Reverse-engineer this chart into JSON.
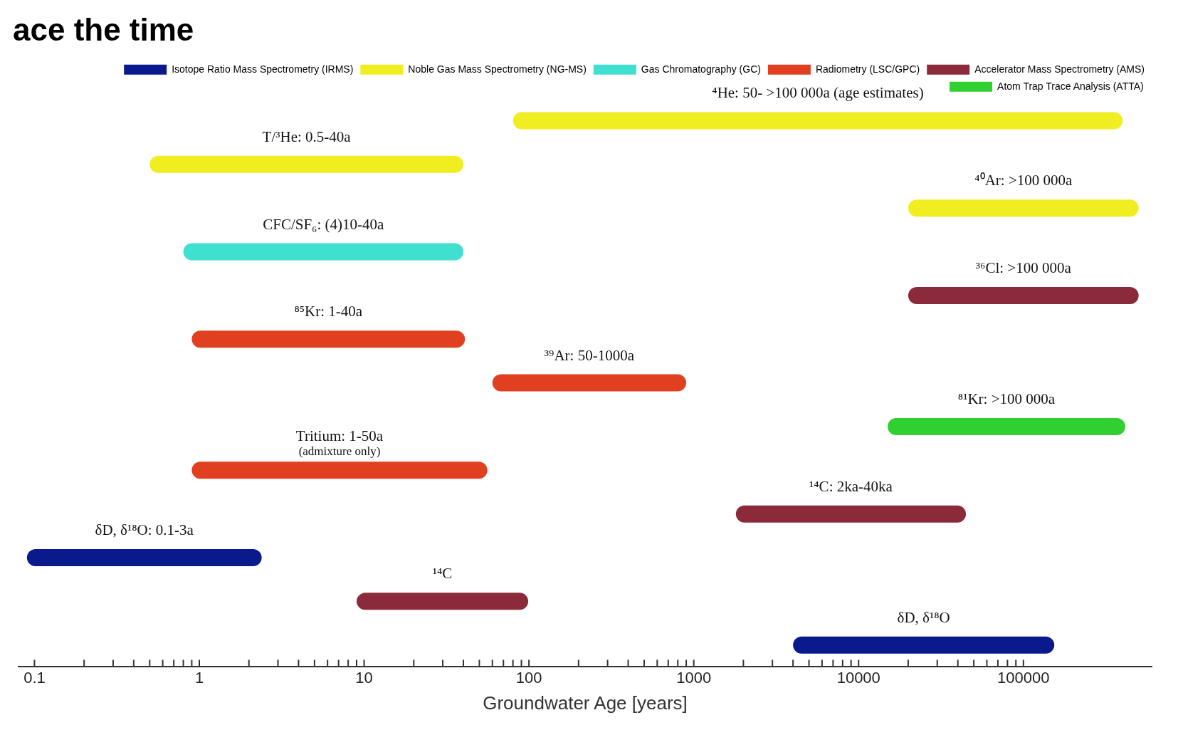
{
  "chart_data": {
    "type": "bar",
    "orientation": "horizontal",
    "log": "x",
    "title": "ace the time",
    "xlabel": "Groundwater Age [years]",
    "categories": [
      "⁴He: 50- >100 000a (age estimates)",
      "T/³He: 0.5-40a",
      "⁴⁰Ar: >100 000a",
      "CFC/SF₆: (4)10-40a",
      "³⁶Cl: >100 000a",
      "⁸⁵Kr: 1-40a",
      "³⁹Ar: 50-1000a",
      "⁸¹Kr: >100 000a",
      "Tritium: 1-50a\n(admixture only)",
      "¹⁴C: 2ka-40ka",
      "δD, δ¹⁸O: 0.1-3a",
      "¹⁴C",
      "δD, δ¹⁸O"
    ],
    "series": [
      {
        "name": "Isotope Ratio Mass Spectrometry (IRMS)",
        "color": "#0a1a8c",
        "values": [
          null,
          null,
          null,
          null,
          null,
          null,
          null,
          null,
          null,
          null,
          2.3,
          null,
          150000
        ],
        "base": [
          null,
          null,
          null,
          null,
          null,
          null,
          null,
          null,
          null,
          null,
          0.09,
          null,
          4000
        ]
      },
      {
        "name": "Noble Gas Mass Spectrometry (NG-MS)",
        "color": "#f0ee20",
        "values": [
          400000,
          39.5,
          480000,
          null,
          null,
          null,
          null,
          null,
          null,
          null,
          null,
          null,
          null
        ],
        "base": [
          80,
          0.5,
          20000,
          null,
          null,
          null,
          null,
          null,
          null,
          null,
          null,
          null,
          null
        ]
      },
      {
        "name": "Gas Chromatography (GC)",
        "color": "#40e0d0",
        "values": [
          null,
          null,
          null,
          39.2,
          null,
          null,
          null,
          null,
          null,
          null,
          null,
          null,
          null
        ],
        "base": [
          null,
          null,
          null,
          0.8,
          null,
          null,
          null,
          null,
          null,
          null,
          null,
          null,
          null
        ]
      },
      {
        "name": "Radiometry (LSC/GPC)",
        "color": "#e04020",
        "values": [
          null,
          null,
          null,
          null,
          null,
          40,
          840,
          null,
          55,
          null,
          null,
          null,
          null
        ],
        "base": [
          null,
          null,
          null,
          null,
          null,
          0.9,
          60,
          null,
          0.9,
          null,
          null,
          null,
          null
        ]
      },
      {
        "name": "Accelerator Mass Spectrometry (AMS)",
        "color": "#8b2a3a",
        "values": [
          null,
          null,
          null,
          null,
          480000,
          null,
          null,
          null,
          null,
          43000,
          null,
          90,
          null
        ],
        "base": [
          null,
          null,
          null,
          null,
          20000,
          null,
          null,
          null,
          null,
          1800,
          null,
          9,
          null
        ]
      },
      {
        "name": "Atom Trap Trace Analysis (ATTA)",
        "color": "#30d030",
        "values": [
          null,
          null,
          null,
          null,
          null,
          null,
          null,
          400000,
          null,
          null,
          null,
          null,
          null
        ],
        "base": [
          null,
          null,
          null,
          null,
          null,
          null,
          null,
          15000,
          null,
          null,
          null,
          null,
          null
        ]
      }
    ],
    "xlim": [
      0.08,
      600000
    ],
    "xticks": [
      0.1,
      {
        "value": 0.2,
        "label": null
      },
      {
        "value": 0.3,
        "label": null
      },
      {
        "value": 0.4,
        "label": null
      },
      {
        "value": 0.5,
        "label": null
      },
      {
        "value": 0.6,
        "label": null
      },
      {
        "value": 0.7,
        "label": null
      },
      {
        "value": 0.8,
        "label": null
      },
      {
        "value": 0.9,
        "label": null
      },
      1,
      {
        "value": 2,
        "label": null
      },
      {
        "value": 3,
        "label": null
      },
      {
        "value": 4,
        "label": null
      },
      {
        "value": 5,
        "label": null
      },
      {
        "value": 6,
        "label": null
      },
      {
        "value": 7,
        "label": null
      },
      {
        "value": 8,
        "label": null
      },
      {
        "value": 9,
        "label": null
      },
      10,
      {
        "value": 20,
        "label": null
      },
      {
        "value": 30,
        "label": null
      },
      {
        "value": 40,
        "label": null
      },
      {
        "value": 50,
        "label": null
      },
      {
        "value": 60,
        "label": null
      },
      {
        "value": 70,
        "label": null
      },
      {
        "value": 80,
        "label": null
      },
      {
        "value": 90,
        "label": null
      },
      100,
      {
        "value": 200,
        "label": null
      },
      {
        "value": 300,
        "label": null
      },
      {
        "value": 400,
        "label": null
      },
      {
        "value": 500,
        "label": null
      },
      {
        "value": 600,
        "label": null
      },
      {
        "value": 700,
        "label": null
      },
      {
        "value": 800,
        "label": null
      },
      {
        "value": 900,
        "label": null
      },
      1000,
      {
        "value": 2000,
        "label": null
      },
      {
        "value": 3000,
        "label": null
      },
      {
        "value": 4000,
        "label": null
      },
      {
        "value": 5000,
        "label": null
      },
      {
        "value": 6000,
        "label": null
      },
      {
        "value": 7000,
        "label": null
      },
      {
        "value": 8000,
        "label": null
      },
      {
        "value": 9000,
        "label": null
      },
      10000,
      {
        "value": 20000,
        "label": null
      },
      {
        "value": 30000,
        "label": null
      },
      {
        "value": 40000,
        "label": null
      },
      {
        "value": 50000,
        "label": null
      },
      {
        "value": 60000,
        "label": null
      },
      {
        "value": 70000,
        "label": null
      },
      {
        "value": 80000,
        "label": null
      },
      {
        "value": 90000,
        "label": null
      },
      100000
    ],
    "tick_labels": "x",
    "grid": false,
    "legend": "top right"
  }
}
